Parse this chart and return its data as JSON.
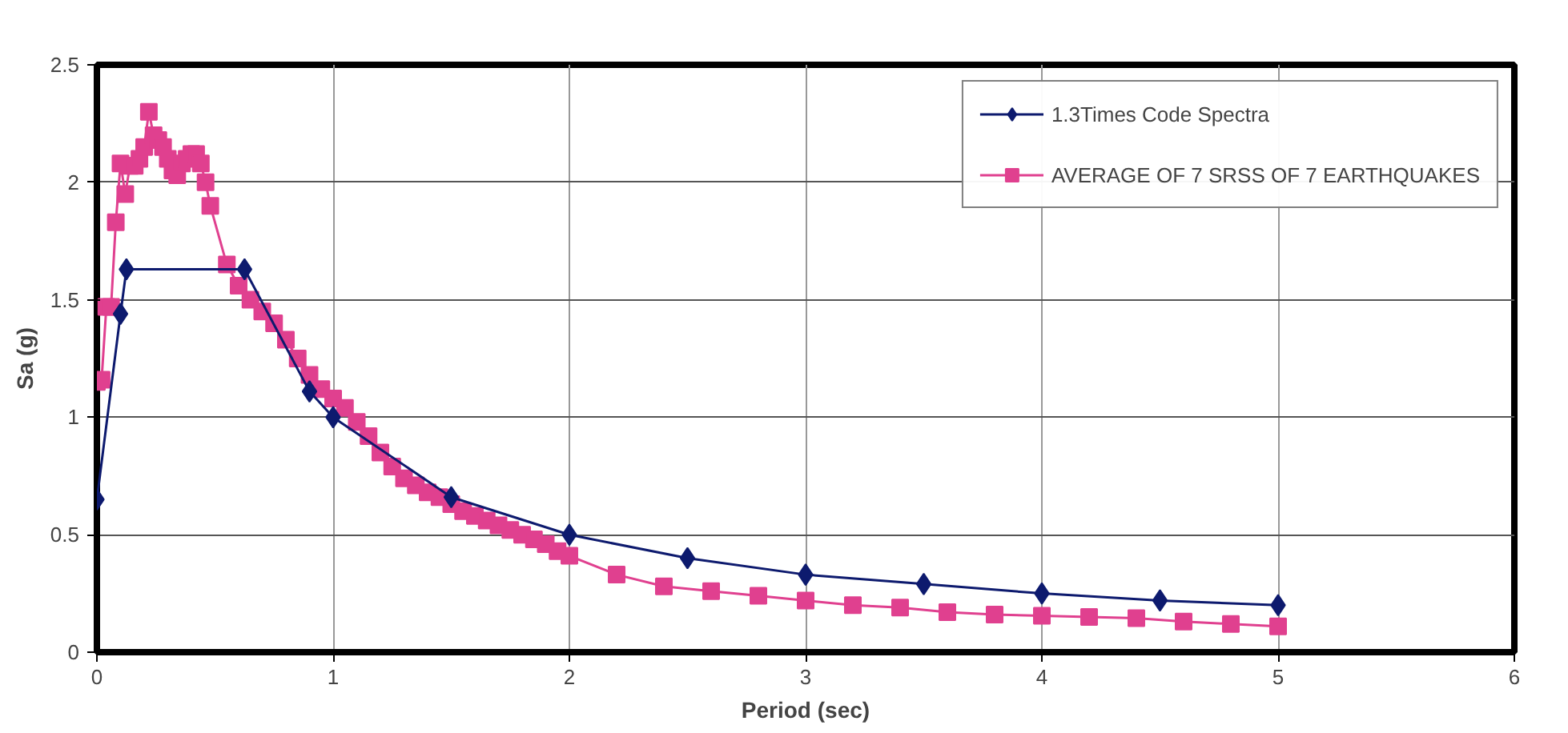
{
  "chart_data": {
    "type": "line",
    "xlabel": "Period (sec)",
    "ylabel": "Sa (g)",
    "xlim": [
      0,
      6
    ],
    "ylim": [
      0,
      2.5
    ],
    "xticks": [
      0,
      1,
      2,
      3,
      4,
      5,
      6
    ],
    "yticks": [
      0,
      0.5,
      1,
      1.5,
      2,
      2.5
    ],
    "grid": true,
    "legend": "top right",
    "series": [
      {
        "name": "1.3Times Code Spectra",
        "color": "#0d1a6e",
        "marker": "diamond",
        "x": [
          0,
          0.1,
          0.125,
          0.625,
          0.9,
          1,
          1.5,
          2,
          2.5,
          3,
          3.5,
          4,
          4.5,
          5
        ],
        "values": [
          0.65,
          1.44,
          1.63,
          1.63,
          1.11,
          1.0,
          0.66,
          0.5,
          0.4,
          0.33,
          0.29,
          0.25,
          0.22,
          0.2
        ]
      },
      {
        "name": "AVERAGE OF 7 SRSS OF 7 EARTHQUAKES",
        "color": "#e0408f",
        "marker": "square",
        "x": [
          0,
          0.02,
          0.04,
          0.06,
          0.08,
          0.1,
          0.12,
          0.14,
          0.16,
          0.18,
          0.2,
          0.22,
          0.24,
          0.26,
          0.28,
          0.3,
          0.32,
          0.34,
          0.36,
          0.38,
          0.4,
          0.42,
          0.44,
          0.46,
          0.48,
          0.55,
          0.6,
          0.65,
          0.7,
          0.75,
          0.8,
          0.85,
          0.9,
          0.95,
          1.0,
          1.05,
          1.1,
          1.15,
          1.2,
          1.25,
          1.3,
          1.35,
          1.4,
          1.45,
          1.5,
          1.55,
          1.6,
          1.65,
          1.7,
          1.75,
          1.8,
          1.85,
          1.9,
          1.95,
          2.0,
          2.2,
          2.4,
          2.6,
          2.8,
          3.0,
          3.2,
          3.4,
          3.6,
          3.8,
          4.0,
          4.2,
          4.4,
          4.6,
          4.8,
          5.0
        ],
        "values": [
          1.15,
          1.16,
          1.47,
          1.47,
          1.83,
          2.08,
          1.95,
          2.07,
          2.07,
          2.1,
          2.15,
          2.3,
          2.2,
          2.18,
          2.15,
          2.1,
          2.05,
          2.03,
          2.08,
          2.1,
          2.12,
          2.12,
          2.08,
          2.0,
          1.9,
          1.65,
          1.56,
          1.5,
          1.45,
          1.4,
          1.33,
          1.25,
          1.18,
          1.12,
          1.08,
          1.04,
          0.98,
          0.92,
          0.85,
          0.79,
          0.74,
          0.71,
          0.68,
          0.66,
          0.63,
          0.6,
          0.58,
          0.56,
          0.54,
          0.52,
          0.5,
          0.48,
          0.46,
          0.43,
          0.41,
          0.33,
          0.28,
          0.26,
          0.24,
          0.22,
          0.2,
          0.19,
          0.17,
          0.16,
          0.155,
          0.15,
          0.145,
          0.13,
          0.12,
          0.11
        ]
      }
    ]
  }
}
